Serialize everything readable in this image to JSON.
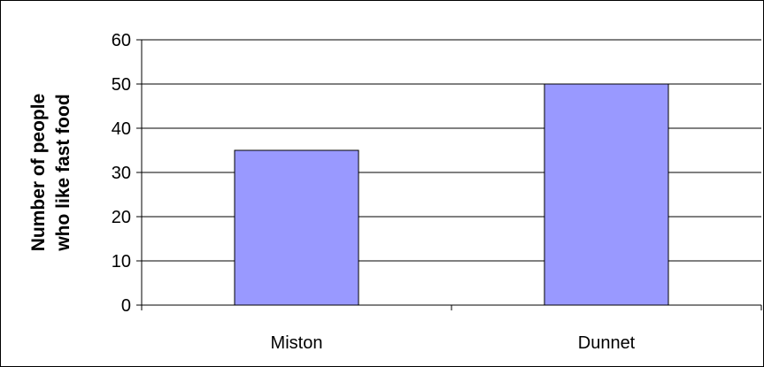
{
  "chart_data": {
    "type": "bar",
    "title": "",
    "xlabel": "",
    "ylabel_lines": [
      "Number of people",
      "who like  fast food"
    ],
    "categories": [
      "Miston",
      "Dunnet"
    ],
    "values": [
      35,
      50
    ],
    "ylim": [
      0,
      60
    ],
    "yticks": [
      0,
      10,
      20,
      30,
      40,
      50,
      60
    ],
    "ytick_labels": [
      "0",
      "10",
      "20",
      "30",
      "40",
      "50",
      "60"
    ],
    "grid": true,
    "legend": "none",
    "bar_color": "#9999ff",
    "bar_edge_color": "#000000"
  }
}
